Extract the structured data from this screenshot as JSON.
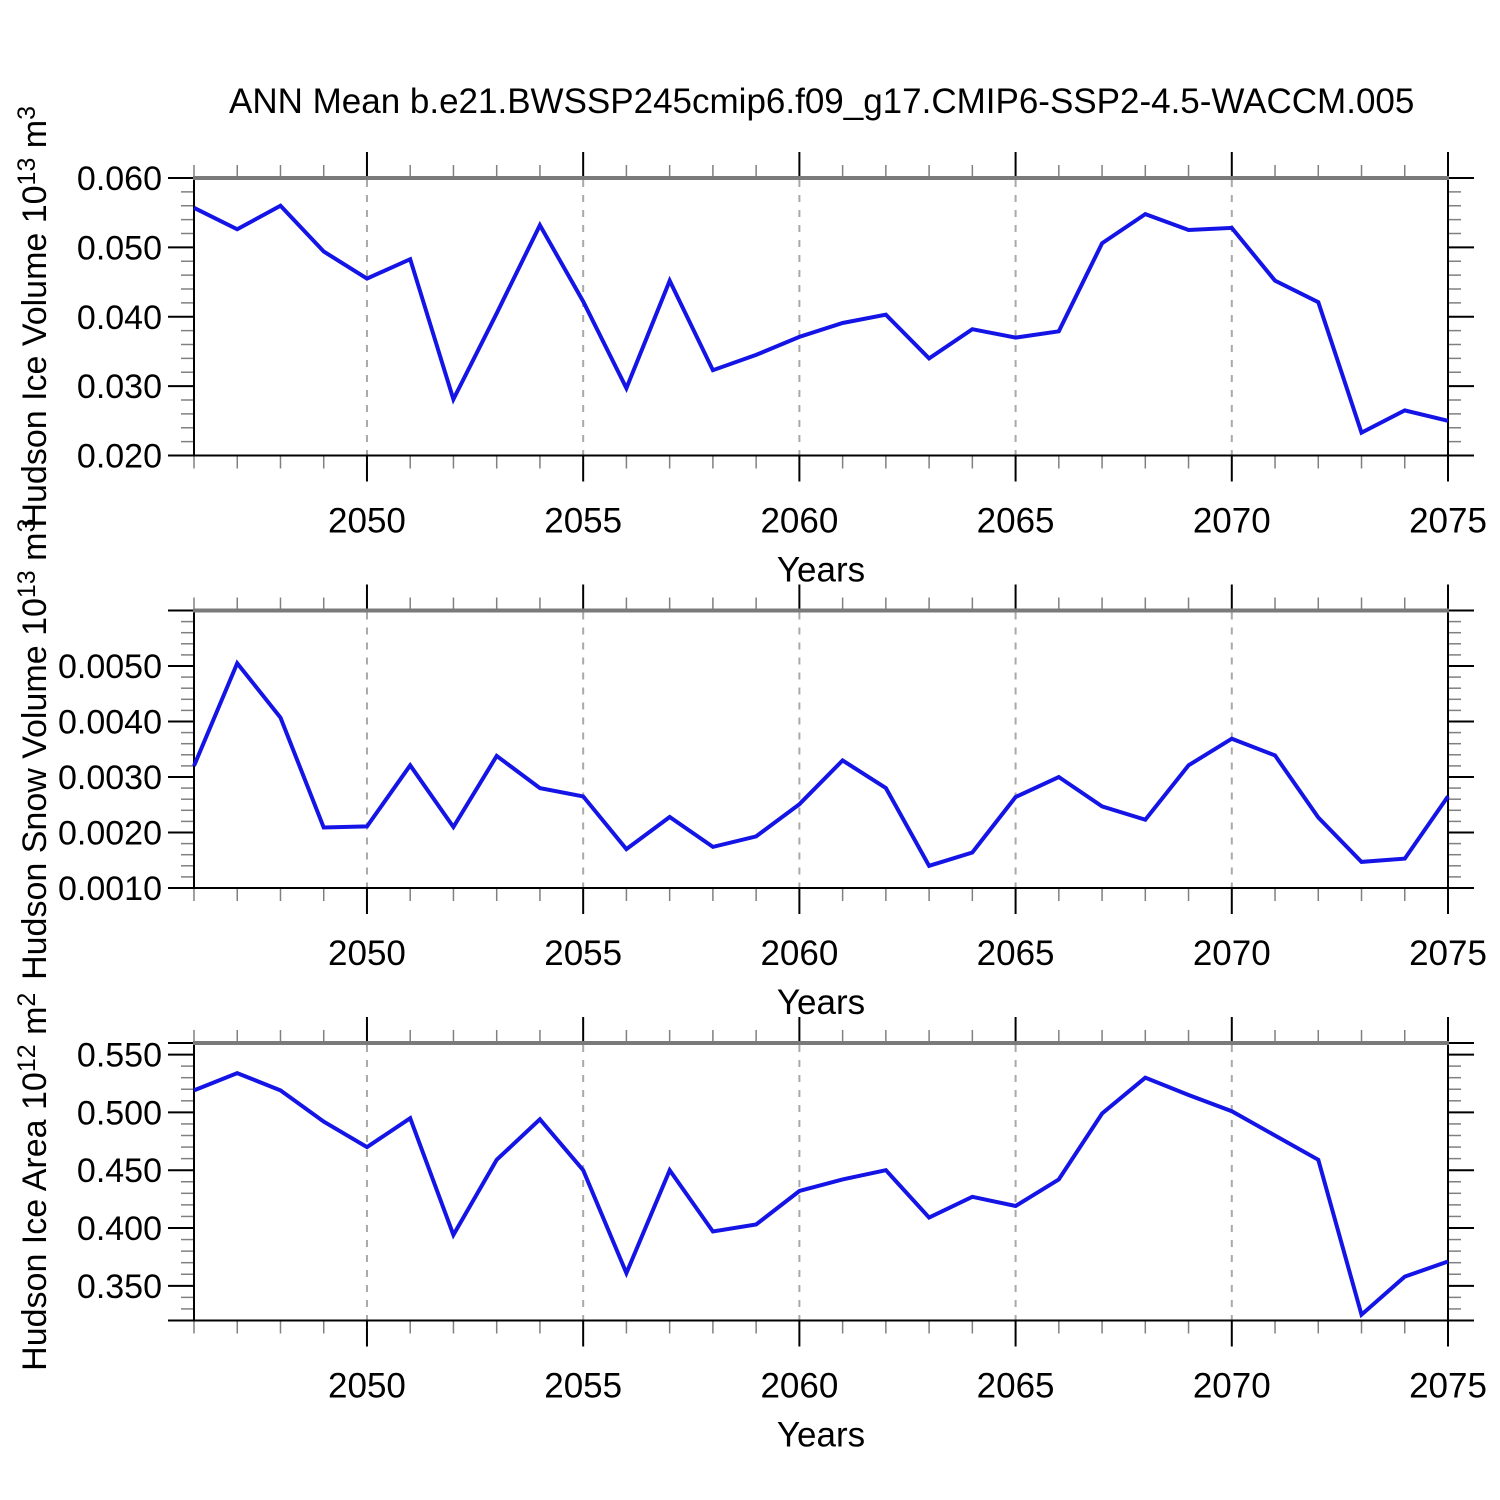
{
  "title": "ANN Mean b.e21.BWSSP245cmip6.f09_g17.CMIP6-SSP2-4.5-WACCM.005",
  "colors": {
    "line": "#1414e6",
    "grid": "#a9a9a9",
    "axis": "#000000",
    "minor_tick": "#808080",
    "panel_top_border": "#7a7a7a",
    "text": "#000000",
    "background": "#ffffff"
  },
  "x_axis": {
    "label": "Years",
    "range": [
      2046,
      2075
    ],
    "major_ticks": [
      2050,
      2055,
      2060,
      2065,
      2070,
      2075
    ],
    "major_tick_labels": [
      "2050",
      "2055",
      "2060",
      "2065",
      "2070",
      "2075"
    ],
    "minor_tick_step": 1,
    "gridline_years": [
      2050,
      2055,
      2060,
      2065,
      2070
    ]
  },
  "chart_data": [
    {
      "type": "line",
      "name": "hudson-ice-volume",
      "ylabel": "Hudson Ice Volume 10^13 m^3",
      "ylabel_runs": [
        {
          "text": "Hudson Ice Volume 10",
          "sup": false
        },
        {
          "text": "13",
          "sup": true
        },
        {
          "text": " m",
          "sup": false
        },
        {
          "text": "3",
          "sup": true
        }
      ],
      "xlabel": "Years",
      "x": [
        2046,
        2047,
        2048,
        2049,
        2050,
        2051,
        2052,
        2053,
        2054,
        2055,
        2056,
        2057,
        2058,
        2059,
        2060,
        2061,
        2062,
        2063,
        2064,
        2065,
        2066,
        2067,
        2068,
        2069,
        2070,
        2071,
        2072,
        2073,
        2074,
        2075
      ],
      "values": [
        0.0557,
        0.0526,
        0.056,
        0.0494,
        0.0455,
        0.0483,
        0.0281,
        0.0405,
        0.0532,
        0.0422,
        0.0297,
        0.0452,
        0.0323,
        0.0345,
        0.0371,
        0.0391,
        0.0403,
        0.034,
        0.0382,
        0.037,
        0.0379,
        0.0506,
        0.0548,
        0.0525,
        0.0528,
        0.0452,
        0.0421,
        0.0233,
        0.0265,
        0.025
      ],
      "ylim": [
        0.02,
        0.06
      ],
      "ytick_values": [
        0.02,
        0.03,
        0.04,
        0.05,
        0.06
      ],
      "ytick_labels": [
        "0.020",
        "0.030",
        "0.040",
        "0.050",
        "0.060"
      ],
      "y_minor_step": 0.002
    },
    {
      "type": "line",
      "name": "hudson-snow-volume",
      "ylabel": "Hudson Snow Volume 10^13 m^3",
      "ylabel_runs": [
        {
          "text": "Hudson Snow Volume 10",
          "sup": false
        },
        {
          "text": "13",
          "sup": true
        },
        {
          "text": " m",
          "sup": false
        },
        {
          "text": "3",
          "sup": true
        }
      ],
      "xlabel": "Years",
      "x": [
        2046,
        2047,
        2048,
        2049,
        2050,
        2051,
        2052,
        2053,
        2054,
        2055,
        2056,
        2057,
        2058,
        2059,
        2060,
        2061,
        2062,
        2063,
        2064,
        2065,
        2066,
        2067,
        2068,
        2069,
        2070,
        2071,
        2072,
        2073,
        2074,
        2075
      ],
      "values": [
        0.0032,
        0.00505,
        0.00407,
        0.00209,
        0.00211,
        0.00321,
        0.0021,
        0.00338,
        0.0028,
        0.00265,
        0.0017,
        0.00228,
        0.00174,
        0.00193,
        0.00251,
        0.0033,
        0.0028,
        0.0014,
        0.00164,
        0.00264,
        0.003,
        0.00247,
        0.00223,
        0.00321,
        0.00369,
        0.00339,
        0.00227,
        0.00147,
        0.00153,
        0.00265
      ],
      "ylim": [
        0.001,
        0.006
      ],
      "ytick_values": [
        0.001,
        0.002,
        0.003,
        0.004,
        0.005
      ],
      "ytick_labels": [
        "0.0010",
        "0.0020",
        "0.0030",
        "0.0040",
        "0.0050"
      ],
      "y_minor_step": 0.0002
    },
    {
      "type": "line",
      "name": "hudson-ice-area",
      "ylabel": "Hudson Ice Area 10^12 m^2",
      "ylabel_runs": [
        {
          "text": "Hudson Ice Area 10",
          "sup": false
        },
        {
          "text": "12",
          "sup": true
        },
        {
          "text": " m",
          "sup": false
        },
        {
          "text": "2",
          "sup": true
        }
      ],
      "xlabel": "Years",
      "x": [
        2046,
        2047,
        2048,
        2049,
        2050,
        2051,
        2052,
        2053,
        2054,
        2055,
        2056,
        2057,
        2058,
        2059,
        2060,
        2061,
        2062,
        2063,
        2064,
        2065,
        2066,
        2067,
        2068,
        2069,
        2070,
        2071,
        2072,
        2073,
        2074,
        2075
      ],
      "values": [
        0.519,
        0.534,
        0.519,
        0.492,
        0.47,
        0.495,
        0.394,
        0.459,
        0.494,
        0.45,
        0.361,
        0.45,
        0.397,
        0.403,
        0.432,
        0.442,
        0.45,
        0.409,
        0.427,
        0.419,
        0.442,
        0.499,
        0.53,
        0.515,
        0.501,
        0.48,
        0.459,
        0.325,
        0.358,
        0.371
      ],
      "ylim": [
        0.32,
        0.56
      ],
      "ytick_values": [
        0.35,
        0.4,
        0.45,
        0.5,
        0.55
      ],
      "ytick_labels": [
        "0.350",
        "0.400",
        "0.450",
        "0.500",
        "0.550"
      ],
      "y_minor_step": 0.01
    }
  ]
}
